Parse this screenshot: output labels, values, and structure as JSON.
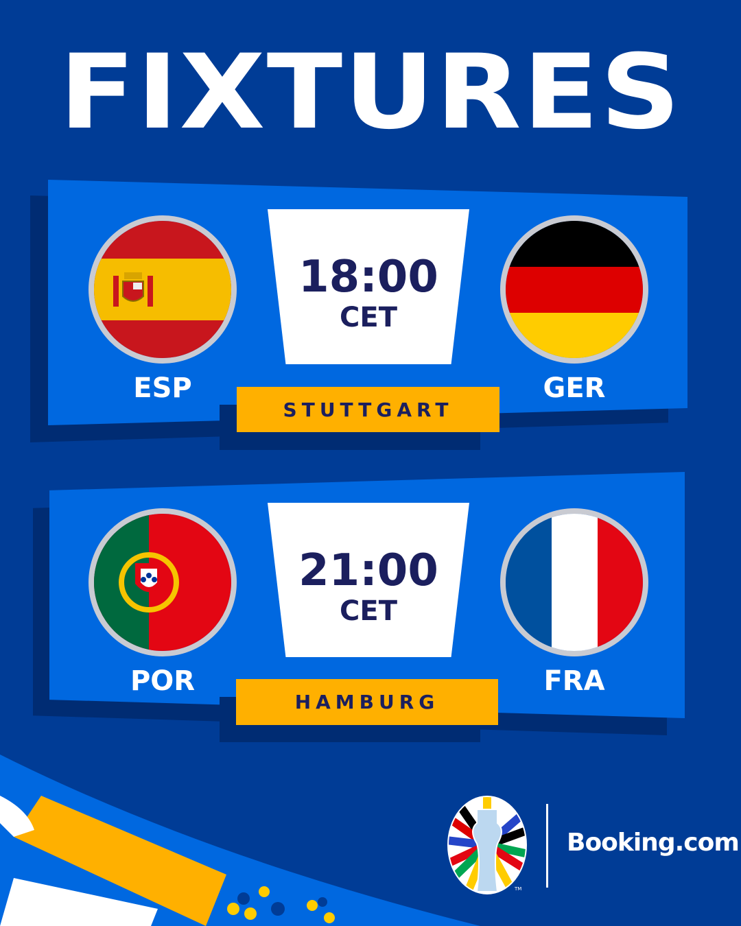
{
  "title": "FIXTURES",
  "fixtures": [
    {
      "home": "ESP",
      "away": "GER",
      "time": "18:00",
      "tz": "CET",
      "venue": "STUTTGART"
    },
    {
      "home": "POR",
      "away": "FRA",
      "time": "21:00",
      "tz": "CET",
      "venue": "HAMBURG"
    }
  ],
  "footer": {
    "sponsor": "Booking.com",
    "logo": "UEFA EURO 2024 trophy logo",
    "tm": "TM"
  },
  "colors": {
    "background": "#003c96",
    "card": "#0068e0",
    "venue": "#ffb000",
    "text_dark": "#1b1f5e"
  }
}
